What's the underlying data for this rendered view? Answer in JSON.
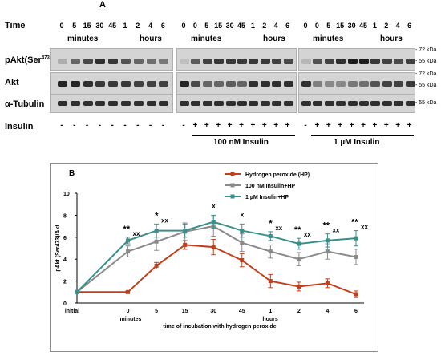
{
  "panel_a": {
    "label": "A",
    "time_label": "Time",
    "time_ticks": [
      "0",
      "5",
      "15",
      "30",
      "45",
      "1",
      "2",
      "4",
      "6"
    ],
    "time_ticks_g2": [
      "0",
      "0",
      "5",
      "15",
      "30",
      "45",
      "1",
      "2",
      "4",
      "6"
    ],
    "minutes_label": "minutes",
    "hours_label": "hours",
    "rows": [
      "pAkt(Ser473)",
      "Akt",
      "α-Tubulin"
    ],
    "pakt_prefix": "pAkt(Ser",
    "pakt_sup": "473",
    "pakt_suffix": ")",
    "kda_72": "- 72 kDa",
    "kda_55": "- 55 kDa",
    "insulin_label": "Insulin",
    "minus": "-",
    "plus": "+",
    "group2_label": "100 nM Insulin",
    "group3_label": "1 µM Insulin"
  },
  "chart_data": {
    "type": "line",
    "panel_label": "B",
    "ylabel": "pAkt (Ser473)/Akt",
    "xlabel": "time of incubation with hydrogen peroxide",
    "x_group_minutes": "minutes",
    "x_group_hours": "hours",
    "categories": [
      "initial",
      "0",
      "5",
      "15",
      "30",
      "45",
      "1",
      "2",
      "4",
      "6"
    ],
    "ylim": [
      0,
      10
    ],
    "yticks": [
      0,
      2,
      4,
      6,
      8,
      10
    ],
    "legend_position": "top-right",
    "series": [
      {
        "name": "Hydrogen peroxide (HP)",
        "color": "#c0401e",
        "values": [
          1.0,
          1.0,
          3.4,
          5.3,
          5.1,
          3.9,
          2.0,
          1.5,
          1.8,
          0.8
        ],
        "errors": [
          0,
          0.1,
          0.3,
          0.4,
          0.7,
          0.6,
          0.6,
          0.4,
          0.4,
          0.3
        ]
      },
      {
        "name": "100 nM Insulin+HP",
        "color": "#8a8a8a",
        "values": [
          1.0,
          4.7,
          5.6,
          6.5,
          7.0,
          5.5,
          4.7,
          4.0,
          4.7,
          4.2
        ],
        "errors": [
          0,
          0.5,
          0.8,
          0.8,
          0.9,
          0.8,
          0.6,
          0.6,
          0.7,
          0.7
        ]
      },
      {
        "name": "1 µM Insulin+HP",
        "color": "#3a8f8a",
        "values": [
          1.0,
          5.7,
          6.6,
          6.6,
          7.4,
          6.6,
          6.1,
          5.4,
          5.7,
          5.9
        ],
        "errors": [
          0,
          0.3,
          0.6,
          0.6,
          0.6,
          0.6,
          0.4,
          0.5,
          0.6,
          0.7
        ]
      }
    ],
    "annotations": [
      {
        "x": "0",
        "text": "**"
      },
      {
        "x": "0",
        "text": "xx"
      },
      {
        "x": "5",
        "text": "*"
      },
      {
        "x": "5",
        "text": "xx"
      },
      {
        "x": "30",
        "text": "x"
      },
      {
        "x": "45",
        "text": "x"
      },
      {
        "x": "1",
        "text": "*"
      },
      {
        "x": "1",
        "text": "xx"
      },
      {
        "x": "2",
        "text": "**"
      },
      {
        "x": "2",
        "text": "xx"
      },
      {
        "x": "4",
        "text": "**"
      },
      {
        "x": "4",
        "text": "xx"
      },
      {
        "x": "6",
        "text": "**"
      },
      {
        "x": "6",
        "text": "xx"
      }
    ]
  }
}
